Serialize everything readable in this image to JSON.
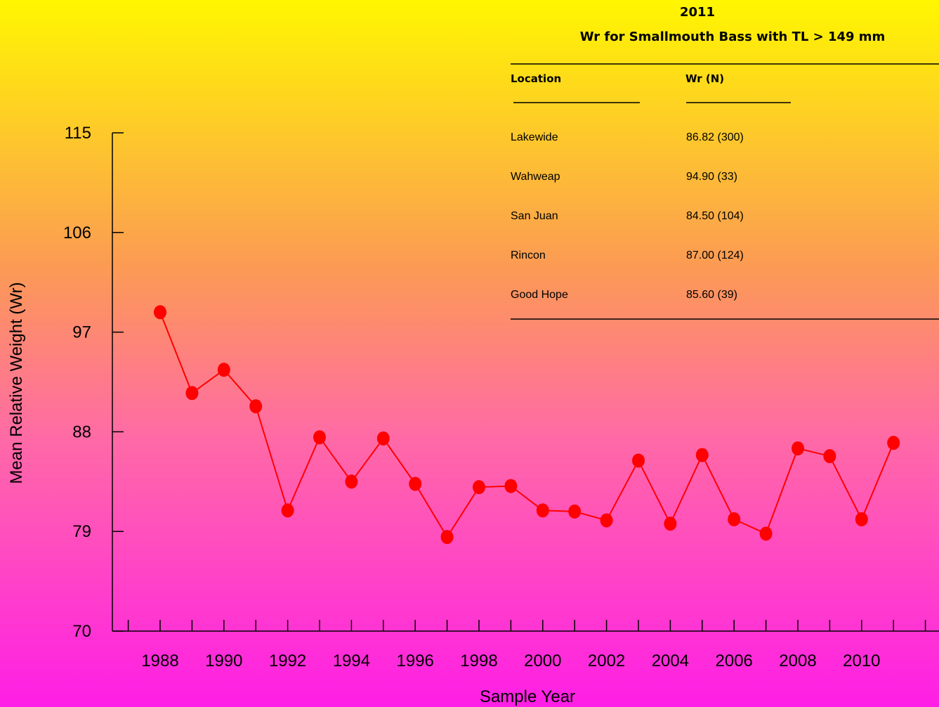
{
  "chart_data": {
    "type": "line",
    "xlabel": "Sample Year",
    "ylabel": "Mean Relative Weight (Wr)",
    "ylim": [
      70,
      115
    ],
    "xlim": [
      1987,
      2012
    ],
    "y_ticks": [
      "70",
      "79",
      "88",
      "97",
      "106",
      "115"
    ],
    "x_tick_labels": [
      "1988",
      "1990",
      "1992",
      "1994",
      "1996",
      "1998",
      "2000",
      "2002",
      "2004",
      "2006",
      "2008",
      "2010"
    ],
    "grid": false,
    "series": [
      {
        "color": "#ff0000",
        "x": [
          1988,
          1989,
          1990,
          1991,
          1992,
          1993,
          1994,
          1995,
          1996,
          1997,
          1998,
          1999,
          2000,
          2001,
          2002,
          2003,
          2004,
          2005,
          2006,
          2007,
          2008,
          2009,
          2010,
          2011
        ],
        "values": [
          98.8,
          91.5,
          93.6,
          90.3,
          80.9,
          87.5,
          83.5,
          87.4,
          83.3,
          78.5,
          83.0,
          83.1,
          80.9,
          80.8,
          80.0,
          85.4,
          79.7,
          85.9,
          80.1,
          78.8,
          86.5,
          85.8,
          80.1,
          87.0
        ]
      }
    ],
    "inset_table": {
      "year": "2011",
      "title": "Wr for Smallmouth Bass with TL > 149 mm",
      "headers": [
        "Location",
        "Wr (N)"
      ],
      "rows": [
        [
          "Lakewide",
          "86.82 (300)"
        ],
        [
          "Wahweap",
          "94.90 (33)"
        ],
        [
          "San Juan",
          "84.50 (104)"
        ],
        [
          "Rincon",
          "87.00 (124)"
        ],
        [
          "Good Hope",
          "85.60 (39)"
        ]
      ]
    }
  }
}
